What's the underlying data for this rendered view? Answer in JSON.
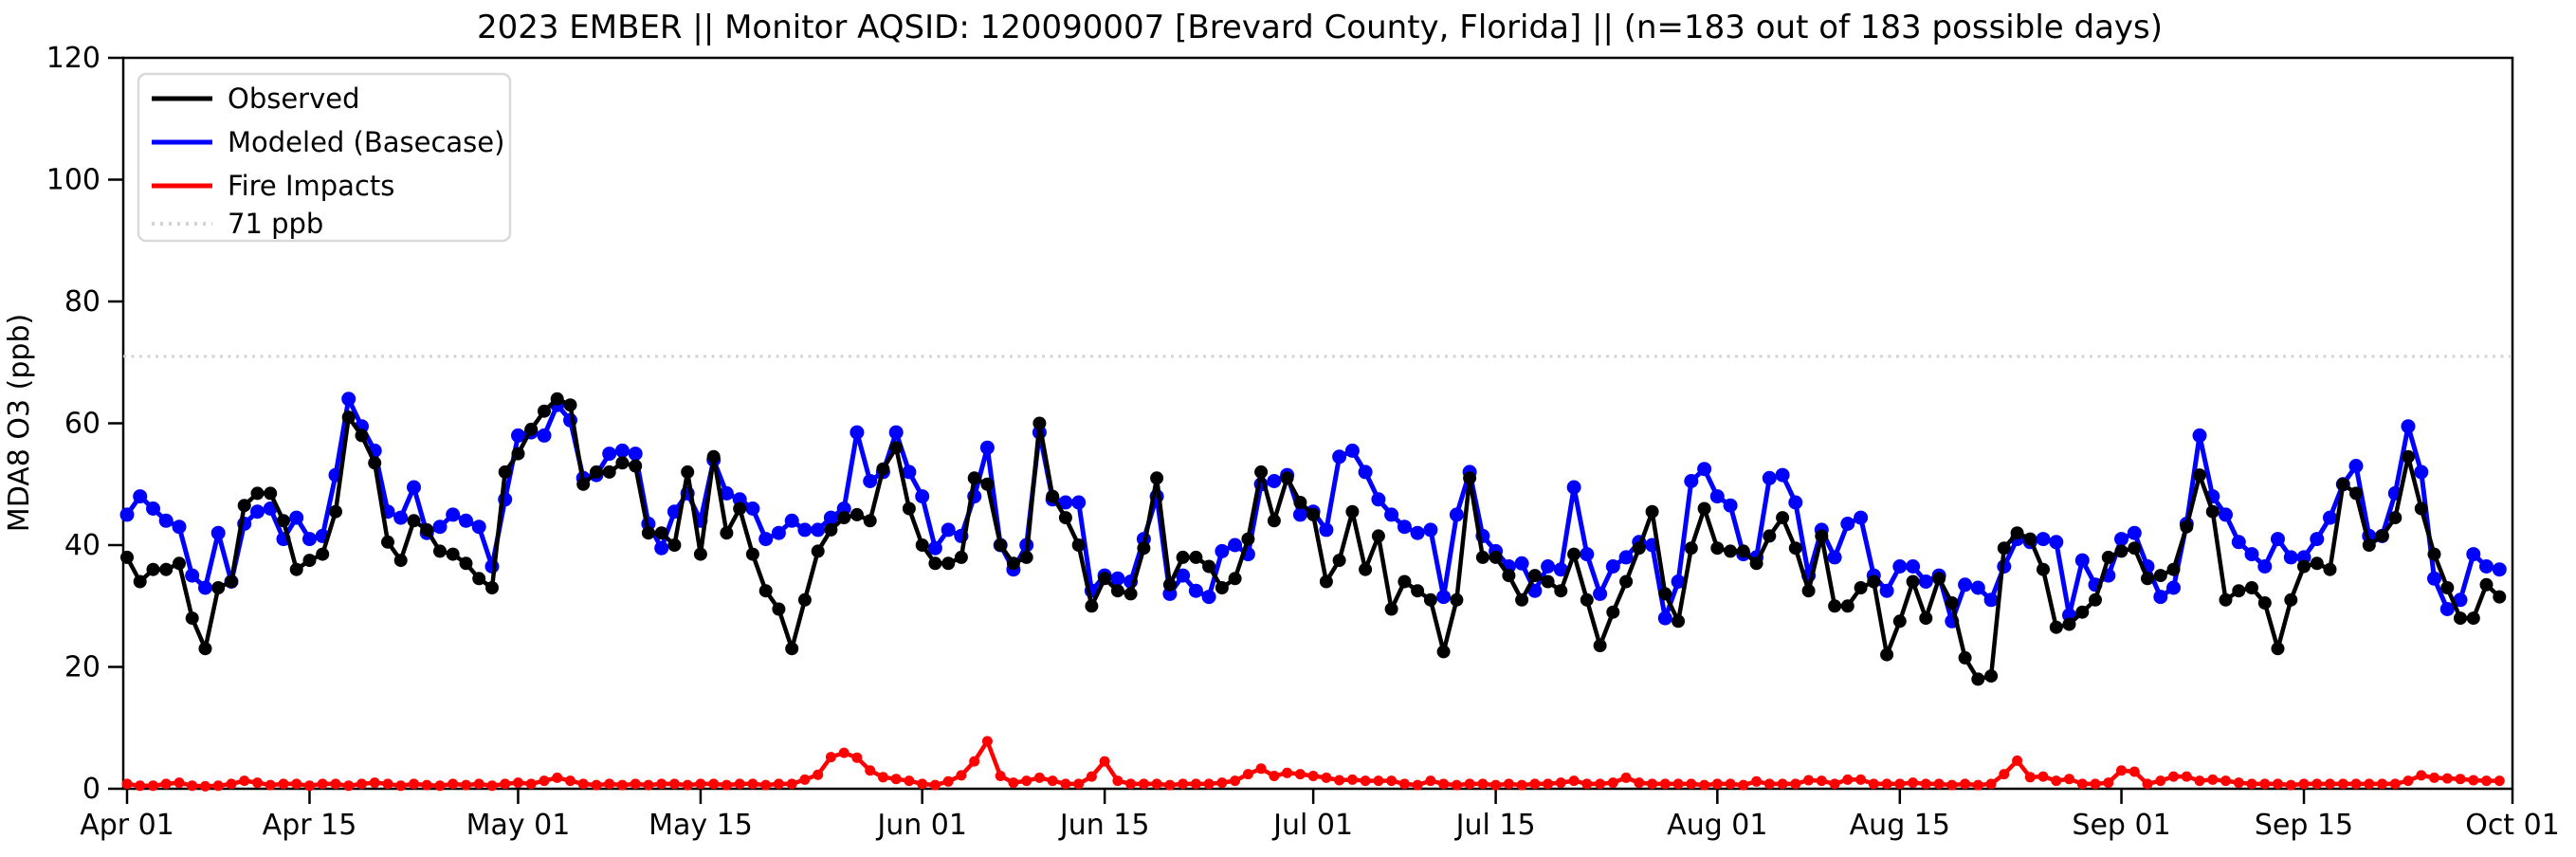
{
  "title": "2023 EMBER || Monitor AQSID: 120090007 [Brevard County, Florida] || (n=183 out of 183 possible days)",
  "y_axis": {
    "label": "MDA8 O3 (ppb)",
    "ticks": [
      0,
      20,
      40,
      60,
      80,
      100,
      120
    ],
    "min": 0,
    "max": 120
  },
  "x_axis": {
    "total_days": 183,
    "ticks": [
      {
        "label": "Apr 01",
        "day": 0
      },
      {
        "label": "Apr 15",
        "day": 14
      },
      {
        "label": "May 01",
        "day": 30
      },
      {
        "label": "May 15",
        "day": 44
      },
      {
        "label": "Jun 01",
        "day": 61
      },
      {
        "label": "Jun 15",
        "day": 75
      },
      {
        "label": "Jul 01",
        "day": 91
      },
      {
        "label": "Jul 15",
        "day": 105
      },
      {
        "label": "Aug 01",
        "day": 122
      },
      {
        "label": "Aug 15",
        "day": 136
      },
      {
        "label": "Sep 01",
        "day": 153
      },
      {
        "label": "Sep 15",
        "day": 167
      },
      {
        "label": "Oct 01",
        "day": 183
      }
    ]
  },
  "legend": {
    "items": [
      {
        "label": "Observed",
        "color": "#000000",
        "style": "solid"
      },
      {
        "label": "Modeled (Basecase)",
        "color": "#0000ff",
        "style": "solid"
      },
      {
        "label": "Fire Impacts",
        "color": "#ff0000",
        "style": "solid"
      },
      {
        "label": "71 ppb",
        "color": "#d3d3d3",
        "style": "dotted"
      }
    ]
  },
  "threshold": {
    "value": 71,
    "label": "71 ppb",
    "color": "#d3d3d3"
  },
  "chart_data": {
    "type": "line",
    "title": "2023 EMBER || Monitor AQSID: 120090007 [Brevard County, Florida] || (n=183 out of 183 possible days)",
    "xlabel": "",
    "ylabel": "MDA8 O3 (ppb)",
    "ylim": [
      0,
      120
    ],
    "x_unit": "days since Apr 01 2023 (daily values, Apr 01 - Sep 30)",
    "grid": false,
    "legend_position": "upper left",
    "threshold_line": 71,
    "series": [
      {
        "name": "Observed",
        "color": "#000000",
        "values": [
          38,
          34,
          36,
          36,
          37,
          28,
          23,
          33,
          34,
          46.5,
          48.5,
          48.5,
          44,
          36,
          37.5,
          38.5,
          45.5,
          61,
          58,
          53.5,
          40.5,
          37.5,
          44,
          42.5,
          39,
          38.5,
          37,
          34.5,
          33,
          52,
          55,
          59,
          62,
          64,
          63,
          50,
          52,
          52,
          53.5,
          53,
          42,
          42,
          40,
          52,
          38.5,
          54.5,
          42,
          46,
          38.5,
          32.5,
          29.5,
          23,
          31,
          39,
          42.5,
          44.5,
          45,
          44,
          52.5,
          56,
          46,
          40,
          37,
          37,
          38,
          51,
          50,
          40,
          37,
          38,
          60,
          48,
          44.5,
          40,
          30,
          34.5,
          32.5,
          32,
          39.5,
          51,
          33.5,
          38,
          38,
          36.5,
          33,
          34.5,
          41,
          52,
          44,
          51,
          47,
          45,
          34,
          37.5,
          45.5,
          36,
          41.5,
          29.5,
          34,
          32.5,
          31,
          22.5,
          31,
          51,
          38,
          38,
          35,
          31,
          35,
          34,
          32.5,
          38.5,
          31,
          23.5,
          29,
          34,
          39.5,
          45.5,
          32,
          27.5,
          39.5,
          46,
          39.5,
          39,
          39,
          37,
          41.5,
          44.5,
          39.5,
          32.5,
          41.5,
          30,
          30,
          33,
          34,
          22,
          27.5,
          34,
          28,
          34.5,
          30.5,
          21.5,
          18,
          18.5,
          39.5,
          42,
          41,
          36,
          26.5,
          27,
          29,
          31,
          38,
          39,
          39.5,
          34.5,
          35,
          36,
          43,
          51.5,
          45.5,
          31,
          32.5,
          33,
          30.5,
          23,
          31,
          36.5,
          37,
          36,
          50,
          48.5,
          40,
          41.5,
          44.5,
          54.5,
          46,
          38.5,
          33,
          28,
          28,
          33.5,
          31.5
        ]
      },
      {
        "name": "Modeled (Basecase)",
        "color": "#0000ff",
        "values": [
          45,
          48,
          46,
          44,
          43,
          35,
          33,
          42,
          34,
          43.5,
          45.5,
          46,
          41,
          44.5,
          41,
          41.5,
          51.5,
          64,
          59.5,
          55.5,
          45.5,
          44.5,
          49.5,
          42,
          43,
          45,
          44,
          43,
          36.5,
          47.5,
          58,
          58.5,
          58,
          63,
          60.5,
          51,
          51.5,
          55,
          55.5,
          55,
          43.5,
          39.5,
          45.5,
          48.5,
          44,
          54,
          48.5,
          47.5,
          46,
          41,
          42,
          44,
          42.5,
          42.5,
          44.5,
          46,
          58.5,
          50.5,
          52,
          58.5,
          52,
          48,
          39.5,
          42.5,
          41.5,
          48,
          56,
          40,
          36,
          40,
          58.5,
          47.5,
          47,
          47,
          32.5,
          35,
          34.5,
          34,
          41,
          48,
          32,
          35,
          32.5,
          31.5,
          39,
          40,
          38.5,
          50,
          50.5,
          51.5,
          45,
          45.5,
          42.5,
          54.5,
          55.5,
          52,
          47.5,
          45,
          43,
          42,
          42.5,
          31.5,
          45,
          52,
          41.5,
          39,
          36.5,
          37,
          32.5,
          36.5,
          36,
          49.5,
          38.5,
          32,
          36.5,
          38,
          40.5,
          40,
          28,
          34,
          50.5,
          52.5,
          48,
          46.5,
          38.5,
          38,
          51,
          51.5,
          47,
          35,
          42.5,
          38,
          43.5,
          44.5,
          35,
          32.5,
          36.5,
          36.5,
          34,
          35,
          27.5,
          33.5,
          33,
          31,
          36.5,
          41,
          40.5,
          41,
          40.5,
          28.5,
          37.5,
          33.5,
          35,
          41,
          42,
          36.5,
          31.5,
          33,
          43.5,
          58,
          48,
          45,
          40.5,
          38.5,
          36.5,
          41,
          38,
          38,
          41,
          44.5,
          50,
          53,
          41.5,
          41.5,
          48.5,
          59.5,
          52,
          34.5,
          29.5,
          31,
          38.5,
          36.5,
          36
        ]
      },
      {
        "name": "Fire Impacts",
        "color": "#ff0000",
        "values": [
          0.8,
          0.5,
          0.5,
          0.8,
          1,
          0.5,
          0.4,
          0.5,
          0.8,
          1.3,
          1,
          0.6,
          0.8,
          0.8,
          0.5,
          0.8,
          0.8,
          0.5,
          0.8,
          1,
          0.8,
          0.5,
          0.8,
          0.6,
          0.5,
          0.8,
          0.6,
          0.8,
          0.5,
          0.8,
          1,
          0.8,
          1.3,
          1.8,
          1.3,
          0.8,
          0.6,
          0.8,
          0.6,
          0.8,
          0.6,
          0.8,
          0.8,
          0.6,
          0.8,
          0.8,
          0.6,
          0.8,
          0.8,
          0.6,
          0.8,
          0.8,
          1.5,
          2.3,
          5.2,
          5.9,
          5.1,
          3,
          1.9,
          1.6,
          1.3,
          0.8,
          0.6,
          1.2,
          2.2,
          4.5,
          7.8,
          2.1,
          1,
          1.3,
          1.8,
          1.3,
          0.8,
          0.8,
          2,
          4.5,
          1.3,
          0.8,
          0.8,
          0.8,
          0.6,
          0.8,
          0.8,
          0.8,
          1,
          1.3,
          2.4,
          3.3,
          2.1,
          2.6,
          2.4,
          2.1,
          1.8,
          1.4,
          1.5,
          1.3,
          1.3,
          1.3,
          0.8,
          0.6,
          1.3,
          0.8,
          0.6,
          0.8,
          0.8,
          0.6,
          0.8,
          0.6,
          0.8,
          0.8,
          1,
          1.3,
          0.8,
          0.8,
          1,
          1.8,
          1,
          0.8,
          0.8,
          0.8,
          0.8,
          0.6,
          0.8,
          0.8,
          0.6,
          1.2,
          0.8,
          0.8,
          0.8,
          1.4,
          1.3,
          0.8,
          1.5,
          1.5,
          0.8,
          0.8,
          0.8,
          1,
          0.8,
          0.8,
          0.6,
          0.8,
          0.6,
          0.8,
          2.4,
          4.6,
          1.9,
          2,
          1.3,
          1.6,
          0.8,
          0.8,
          1,
          3,
          2.8,
          0.8,
          1.3,
          2,
          2,
          1.3,
          1.5,
          1.3,
          1,
          0.8,
          0.8,
          0.8,
          0.6,
          0.8,
          0.8,
          0.8,
          0.8,
          0.8,
          0.8,
          0.8,
          0.8,
          1.3,
          2.2,
          1.8,
          1.7,
          1.6,
          1.4,
          1.3,
          1.3
        ]
      }
    ]
  }
}
